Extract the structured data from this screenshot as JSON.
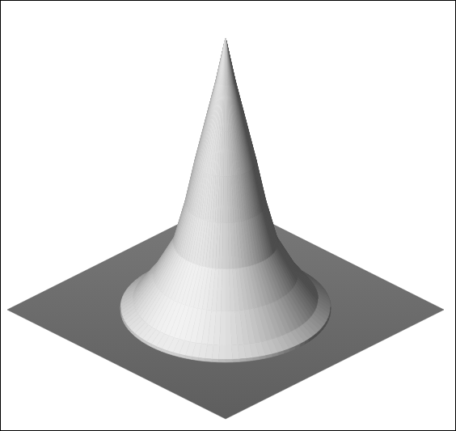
{
  "chart_data": {
    "type": "surface",
    "x": [
      0,
      0.063,
      0.131,
      0.199,
      0.262,
      0.34,
      0.47,
      0.6,
      0.68,
      0.68
    ],
    "values": [
      2.03,
      1.71,
      1.41,
      1.11,
      0.8,
      0.5,
      0.26,
      0.08,
      0.02,
      0
    ],
    "xlim": [
      -1,
      1
    ],
    "color": "#dcdcdc"
  }
}
